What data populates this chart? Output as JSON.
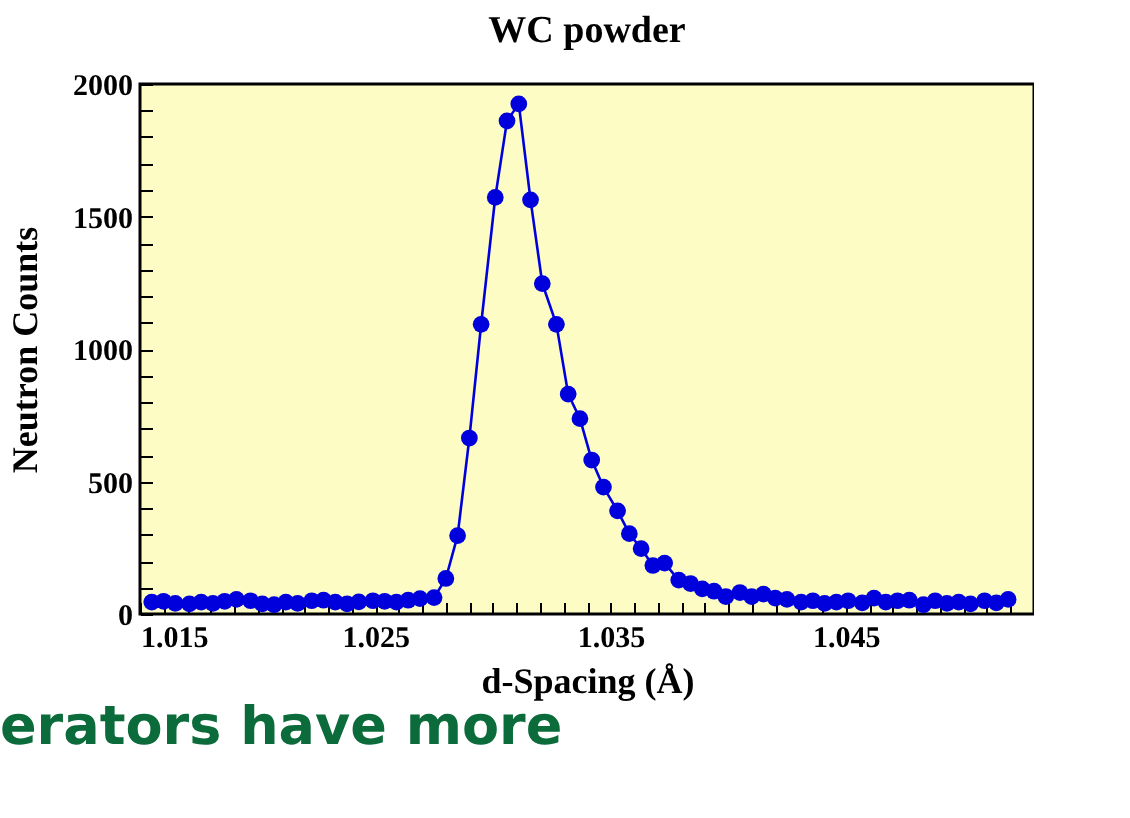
{
  "chart_data": {
    "type": "line",
    "title": "WC powder",
    "xlabel": "d-Spacing (Å)",
    "ylabel": "Neutron Counts",
    "xlim": [
      1.015,
      1.053
    ],
    "ylim": [
      0,
      2000
    ],
    "xticks": [
      1.015,
      {
        "value": 1.016,
        "label": null
      },
      {
        "value": 1.017,
        "label": null
      },
      {
        "value": 1.018,
        "label": null
      },
      {
        "value": 1.019,
        "label": null
      },
      {
        "value": 1.02,
        "label": null
      },
      {
        "value": 1.021,
        "label": null
      },
      {
        "value": 1.022,
        "label": null
      },
      {
        "value": 1.023,
        "label": null
      },
      {
        "value": 1.024,
        "label": null
      },
      1.025,
      {
        "value": 1.026,
        "label": null
      },
      {
        "value": 1.027,
        "label": null
      },
      {
        "value": 1.028,
        "label": null
      },
      {
        "value": 1.029,
        "label": null
      },
      {
        "value": 1.03,
        "label": null
      },
      {
        "value": 1.031,
        "label": null
      },
      {
        "value": 1.032,
        "label": null
      },
      {
        "value": 1.033,
        "label": null
      },
      {
        "value": 1.034,
        "label": null
      },
      1.035,
      {
        "value": 1.036,
        "label": null
      },
      {
        "value": 1.037,
        "label": null
      },
      {
        "value": 1.038,
        "label": null
      },
      {
        "value": 1.039,
        "label": null
      },
      {
        "value": 1.04,
        "label": null
      },
      {
        "value": 1.041,
        "label": null
      },
      {
        "value": 1.042,
        "label": null
      },
      {
        "value": 1.043,
        "label": null
      },
      {
        "value": 1.044,
        "label": null
      },
      1.045,
      {
        "value": 1.046,
        "label": null
      },
      {
        "value": 1.047,
        "label": null
      },
      {
        "value": 1.048,
        "label": null
      },
      {
        "value": 1.049,
        "label": null
      },
      {
        "value": 1.05,
        "label": null
      },
      {
        "value": 1.051,
        "label": null
      },
      {
        "value": 1.052,
        "label": null
      }
    ],
    "yticks": [
      0,
      {
        "value": 100,
        "label": null
      },
      {
        "value": 200,
        "label": null
      },
      {
        "value": 300,
        "label": null
      },
      {
        "value": 400,
        "label": null
      },
      500,
      {
        "value": 600,
        "label": null
      },
      {
        "value": 700,
        "label": null
      },
      {
        "value": 800,
        "label": null
      },
      {
        "value": 900,
        "label": null
      },
      1000,
      {
        "value": 1100,
        "label": null
      },
      {
        "value": 1200,
        "label": null
      },
      {
        "value": 1300,
        "label": null
      },
      {
        "value": 1400,
        "label": null
      },
      1500,
      {
        "value": 1600,
        "label": null
      },
      {
        "value": 1700,
        "label": null
      },
      {
        "value": 1800,
        "label": null
      },
      {
        "value": 1900,
        "label": null
      },
      2000
    ],
    "x": [
      1.0155,
      1.016,
      1.0165,
      1.0171,
      1.0176,
      1.0181,
      1.0186,
      1.0191,
      1.0197,
      1.0202,
      1.0207,
      1.0212,
      1.0217,
      1.0223,
      1.0228,
      1.0233,
      1.0238,
      1.0243,
      1.0249,
      1.0254,
      1.0259,
      1.0264,
      1.0269,
      1.0275,
      1.028,
      1.0285,
      1.029,
      1.0295,
      1.0301,
      1.0306,
      1.0311,
      1.0316,
      1.0321,
      1.0327,
      1.0332,
      1.0337,
      1.0342,
      1.0347,
      1.0353,
      1.0358,
      1.0363,
      1.0368,
      1.0373,
      1.0379,
      1.0384,
      1.0389,
      1.0394,
      1.0399,
      1.0405,
      1.041,
      1.0415,
      1.042,
      1.0425,
      1.0431,
      1.0436,
      1.0441,
      1.0446,
      1.0451,
      1.0457,
      1.0462,
      1.0467,
      1.0472,
      1.0477,
      1.0483,
      1.0488,
      1.0493,
      1.0498,
      1.0503,
      1.0509,
      1.0514,
      1.0519
    ],
    "series": [
      {
        "color": "#0000dd",
        "values": [
          45,
          48,
          40,
          38,
          45,
          40,
          48,
          55,
          50,
          38,
          35,
          45,
          40,
          50,
          52,
          45,
          38,
          46,
          50,
          48,
          45,
          52,
          58,
          62,
          134,
          296,
          664,
          1093,
          1572,
          1861,
          1925,
          1563,
          1247,
          1093,
          830,
          737,
          581,
          479,
          389,
          303,
          247,
          183,
          192,
          128,
          115,
          95,
          86,
          66,
          81,
          66,
          75,
          60,
          55,
          45,
          50,
          40,
          45,
          50,
          42,
          60,
          45,
          50,
          52,
          35,
          50,
          40,
          45,
          38,
          50,
          42,
          55
        ]
      }
    ],
    "marker": "circle",
    "line_style": "solid",
    "grid": false,
    "annotations": [
      "erators have more"
    ]
  }
}
